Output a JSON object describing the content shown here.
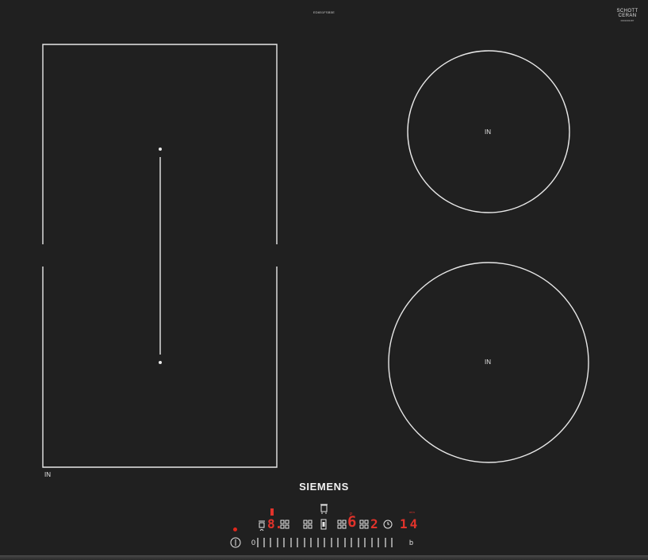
{
  "model_number": "ED651FSB5E",
  "logo": {
    "name": "SCHOTT",
    "product": "CERAN",
    "serial": "0001003187"
  },
  "zones": {
    "flex_zone_label": "IN",
    "zone_top_right_label": "IN",
    "zone_bottom_right_label": "IN"
  },
  "brand": "SIEMENS",
  "controls": {
    "zone_display": "8.",
    "power_boost_display": "6",
    "power_boost_small": "P",
    "zone_level_display": "2",
    "timer_unit": "min",
    "timer_display": "14",
    "slider_min_label": "0",
    "slider_max_label": "b"
  },
  "colors": {
    "glass": "#202020",
    "display_red": "#e2332b",
    "marking_white": "#e8e8e8"
  }
}
